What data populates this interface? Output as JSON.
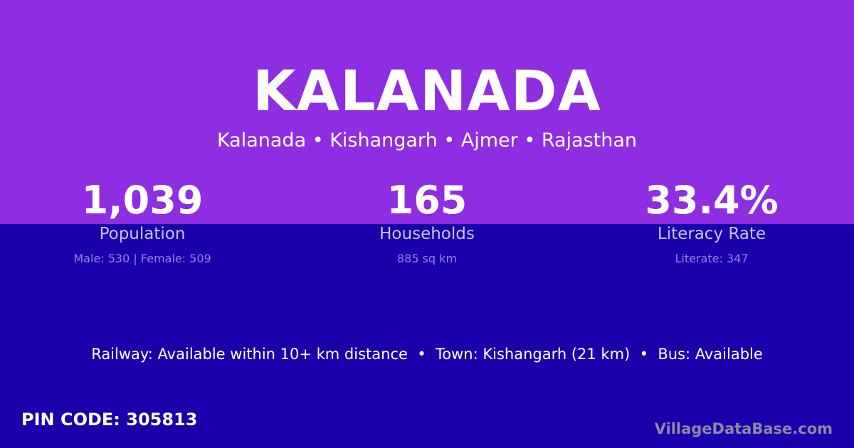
{
  "village": "KALANADA",
  "location": "Kalanada • Kishangarh • Ajmer • Rajasthan",
  "stats": [
    {
      "value": "1,039",
      "label": "Population",
      "detail": "Male: 530 | Female: 509"
    },
    {
      "value": "165",
      "label": "Households",
      "detail": "885 sq km"
    },
    {
      "value": "33.4%",
      "label": "Literacy Rate",
      "detail": "Literate: 347"
    }
  ],
  "info": "Railway: Available within 10+ km distance  •  Town: Kishangarh (21 km)  •  Bus: Available",
  "pin": "PIN CODE: 305813",
  "brand": "VillageDataBase.com",
  "colors": {
    "top": "#8e2de2",
    "bottom": "#1a00aa"
  }
}
